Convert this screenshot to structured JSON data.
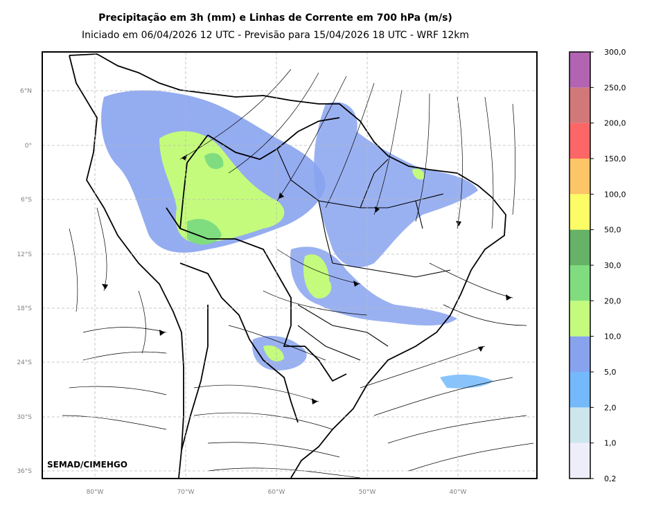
{
  "header": {
    "title": "Precipitação em 3h (mm) e Linhas de Corrente em 700 hPa (m/s)",
    "subtitle": "Iniciado em 06/04/2026 12 UTC - Previsão para 15/04/2026 18 UTC - WRF 12km"
  },
  "map": {
    "credit": "SEMAD/CIMEHGO",
    "lat_labels": [
      "6°N",
      "0°",
      "6°S",
      "12°S",
      "18°S",
      "24°S",
      "30°S",
      "36°S"
    ],
    "lon_labels": [
      "80°W",
      "70°W",
      "60°W",
      "50°W",
      "40°W"
    ],
    "grid": true
  },
  "colorbar": {
    "labels": [
      "0,2",
      "1,0",
      "2,0",
      "5,0",
      "10,0",
      "20,0",
      "30,0",
      "50,0",
      "100,0",
      "150,0",
      "200,0",
      "250,0",
      "300,0"
    ],
    "colors": [
      "#eeeefa",
      "#cde6ee",
      "#74b9fb",
      "#88a3ee",
      "#c4fb7d",
      "#7fdd7f",
      "#66b266",
      "#fcfc66",
      "#fcc566",
      "#fc6666",
      "#d27878",
      "#b264b2"
    ]
  }
}
